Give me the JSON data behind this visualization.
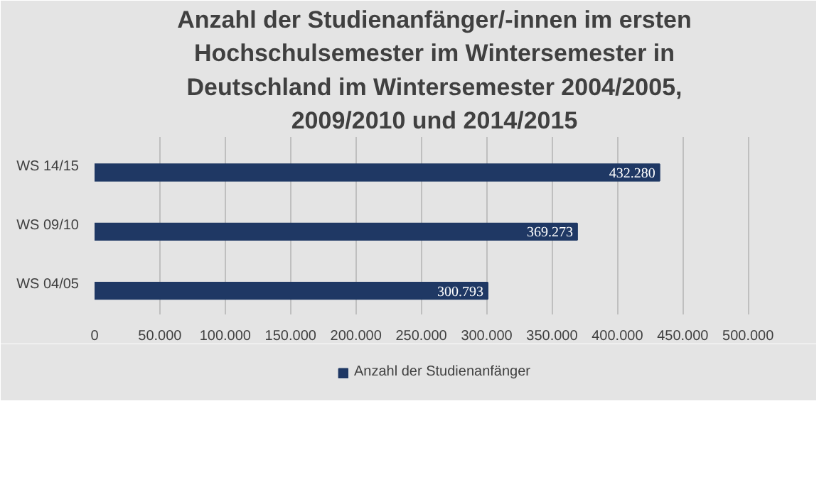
{
  "chart_data": {
    "type": "bar",
    "orientation": "horizontal",
    "title": "Anzahl der Studienanfänger/-innen im ersten Hochschulsemester im Wintersemester in Deutschland im Wintersemester 2004/2005, 2009/2010 und 2014/2015",
    "categories": [
      "WS 14/15",
      "WS 09/10",
      "WS 04/05"
    ],
    "series": [
      {
        "name": "Anzahl der Studienanfänger",
        "color": "#1f3864",
        "values": [
          432280,
          369273,
          300793
        ],
        "value_labels": [
          "432.280",
          "369.273",
          "300.793"
        ]
      }
    ],
    "xlim": [
      0,
      520000
    ],
    "xticks": [
      0,
      {
        "value": 50000,
        "label": "50.000"
      },
      {
        "value": 100000,
        "label": "100.000"
      },
      {
        "value": 150000,
        "label": "150.000"
      },
      {
        "value": 200000,
        "label": "200.000"
      },
      {
        "value": 250000,
        "label": "250.000"
      },
      {
        "value": 300000,
        "label": "300.000"
      },
      {
        "value": 350000,
        "label": "350.000"
      },
      {
        "value": 400000,
        "label": "400.000"
      },
      {
        "value": 450000,
        "label": "450.000"
      },
      {
        "value": 500000,
        "label": "500.000"
      }
    ],
    "grid": "x",
    "legend": "bottom"
  }
}
